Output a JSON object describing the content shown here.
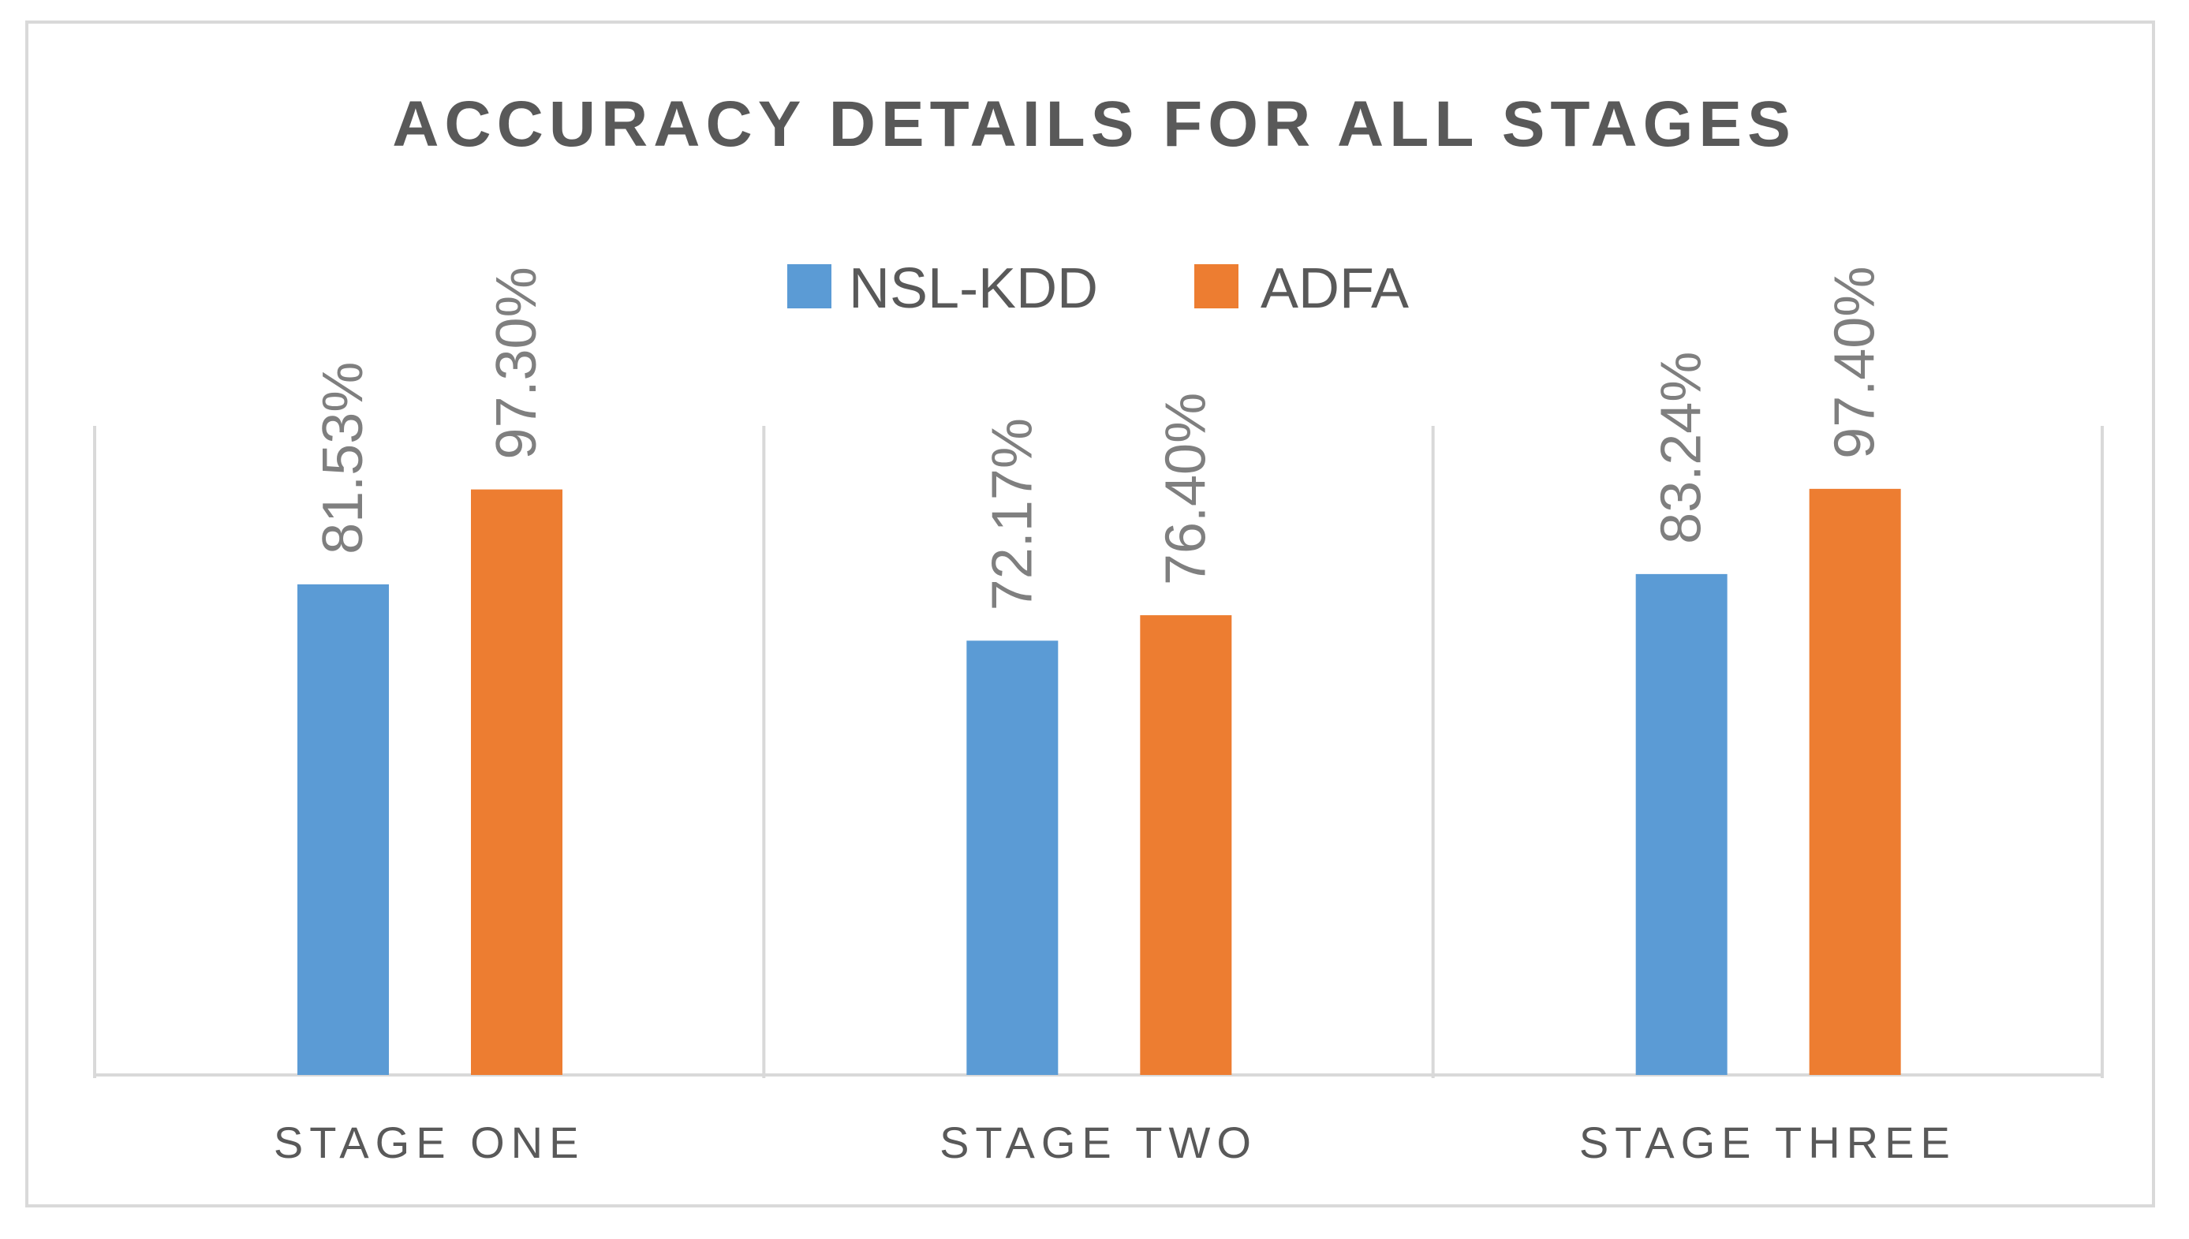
{
  "chart_data": {
    "type": "bar",
    "title": "ACCURACY DETAILS FOR ALL STAGES",
    "categories": [
      "STAGE ONE",
      "STAGE TWO",
      "STAGE THREE"
    ],
    "series": [
      {
        "name": "NSL-KDD",
        "color": "#5b9bd5",
        "values": [
          81.53,
          72.17,
          83.24
        ],
        "labels": [
          "81.53%",
          "72.17%",
          "83.24%"
        ]
      },
      {
        "name": "ADFA",
        "color": "#ed7d31",
        "values": [
          97.3,
          76.4,
          97.4
        ],
        "labels": [
          "97.30%",
          "76.40%",
          "97.40%"
        ]
      }
    ],
    "ylim": [
      0,
      120
    ],
    "xlabel": "",
    "ylabel": "",
    "legend": "top-center",
    "grid": false
  }
}
